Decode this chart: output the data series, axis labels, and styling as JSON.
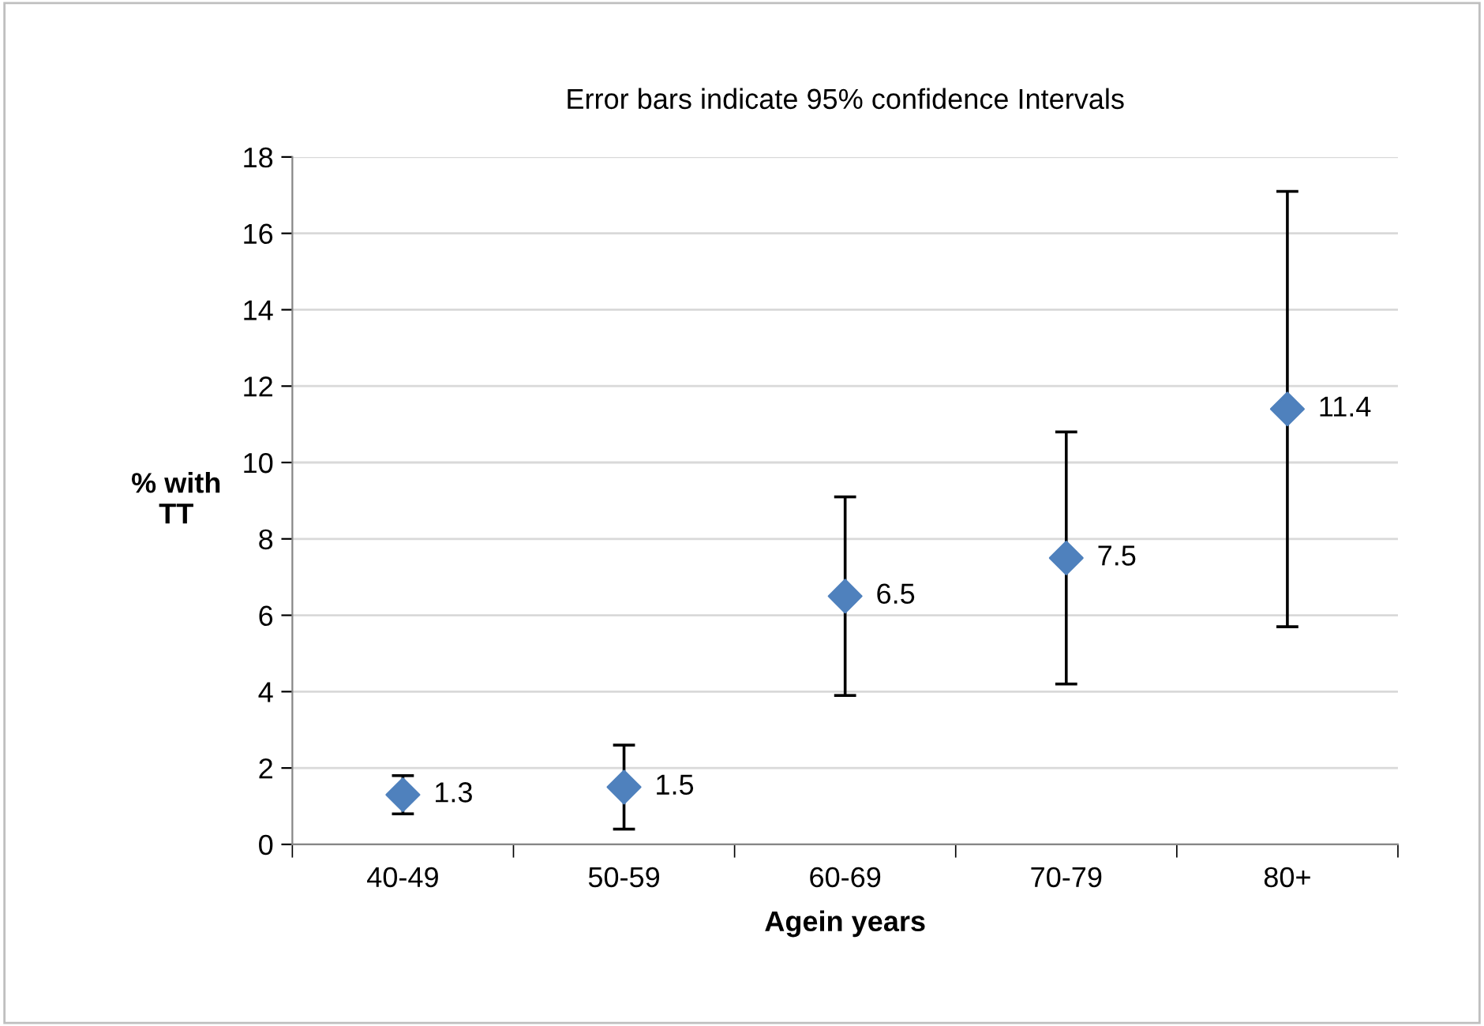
{
  "chart_data": {
    "type": "scatter",
    "title": "Error bars indicate 95% confidence Intervals",
    "xlabel": "Agein years",
    "ylabel": "% with\nTT",
    "categories": [
      "40-49",
      "50-59",
      "60-69",
      "70-79",
      "80+"
    ],
    "series": [
      {
        "color": "#4f81bd",
        "values": [
          1.3,
          1.5,
          6.5,
          7.5,
          11.4
        ],
        "errors": [
          [
            0.8,
            1.8
          ],
          [
            0.4,
            2.6
          ],
          [
            3.9,
            9.1
          ],
          [
            4.2,
            10.8
          ],
          [
            5.7,
            17.1
          ]
        ]
      }
    ],
    "ylim": [
      0,
      18
    ],
    "yticks": [
      0,
      2,
      4,
      6,
      8,
      10,
      12,
      14,
      16,
      18
    ],
    "grid": "y",
    "marker": "diamond",
    "data_labels": true
  }
}
